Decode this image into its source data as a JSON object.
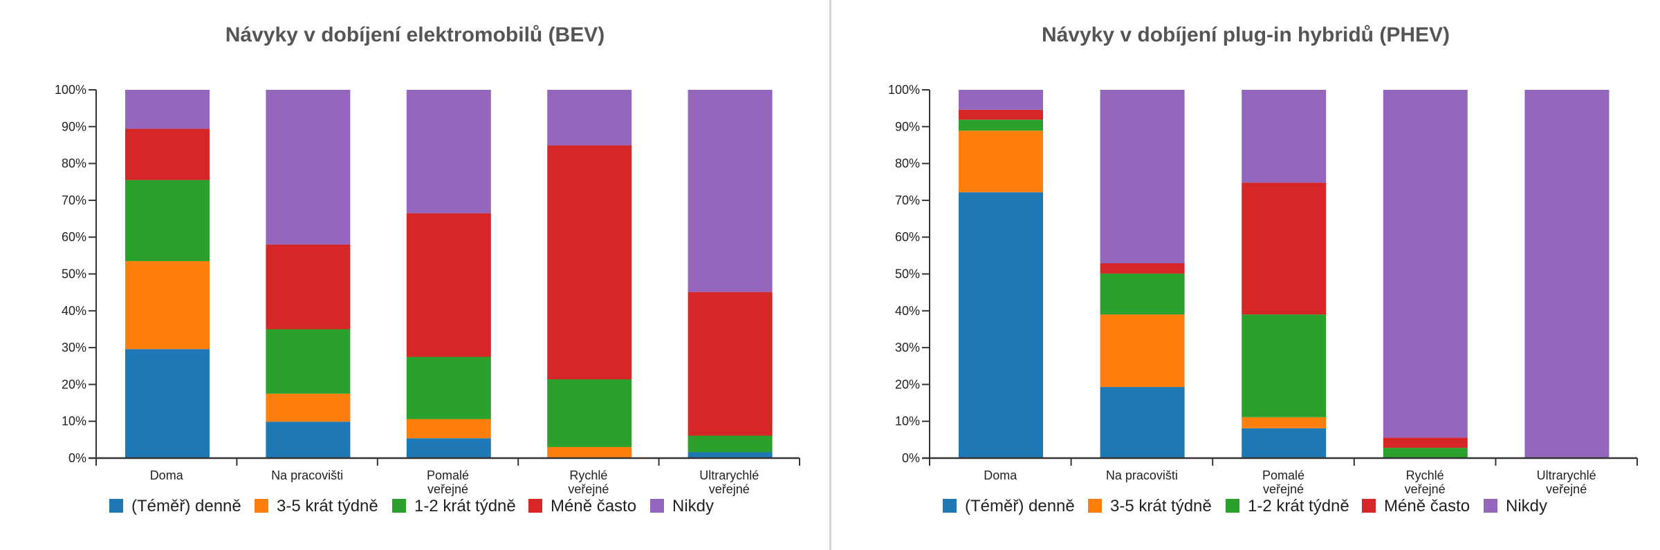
{
  "colors": {
    "daily": "#1f77b4",
    "three_five": "#ff7f0e",
    "one_two": "#2ca02c",
    "less_often": "#d62728",
    "never": "#9467bd",
    "title": "#555555",
    "divider": "#d6d6d6"
  },
  "legend": [
    {
      "label": "(Téměř) denně",
      "color": "#1f77b4"
    },
    {
      "label": "3-5 krát týdně",
      "color": "#ff7f0e"
    },
    {
      "label": "1-2 krát týdně",
      "color": "#2ca02c"
    },
    {
      "label": "Méně často",
      "color": "#d62728"
    },
    {
      "label": "Nikdy",
      "color": "#9467bd"
    }
  ],
  "y_ticks": [
    "0%",
    "10%",
    "20%",
    "30%",
    "40%",
    "50%",
    "60%",
    "70%",
    "80%",
    "90%",
    "100%"
  ],
  "chart_data": [
    {
      "type": "bar",
      "stacked": true,
      "normalized": true,
      "title": "Návyky v dobíjení elektromobilů (BEV)",
      "xlabel": "",
      "ylabel": "",
      "ylim": [
        0,
        100
      ],
      "categories": [
        [
          "Doma"
        ],
        [
          "Na pracovišti"
        ],
        [
          "Pomalé",
          "veřejné"
        ],
        [
          "Rychlé",
          "veřejné"
        ],
        [
          "Ultrarychlé",
          "veřejné"
        ]
      ],
      "category_names": [
        "Doma",
        "Na pracovišti",
        "Pomalé veřejné",
        "Rychlé veřejné",
        "Ultrarychlé veřejné"
      ],
      "legend_position": "bottom",
      "grid": false,
      "series": [
        {
          "name": "(Téměř) denně",
          "color": "#1f77b4",
          "values": [
            29.6,
            9.9,
            5.4,
            0.0,
            1.6
          ]
        },
        {
          "name": "3-5 krát týdně",
          "color": "#ff7f0e",
          "values": [
            23.9,
            7.6,
            5.2,
            3.0,
            0.0
          ]
        },
        {
          "name": "1-2 krát týdně",
          "color": "#2ca02c",
          "values": [
            22.0,
            17.5,
            16.9,
            18.4,
            4.5
          ]
        },
        {
          "name": "Méně často",
          "color": "#d62728",
          "values": [
            13.9,
            23.0,
            39.0,
            63.5,
            39.0
          ]
        },
        {
          "name": "Nikdy",
          "color": "#9467bd",
          "values": [
            10.6,
            42.0,
            33.5,
            15.1,
            54.9
          ]
        }
      ]
    },
    {
      "type": "bar",
      "stacked": true,
      "normalized": true,
      "title": "Návyky v dobíjení plug-in hybridů (PHEV)",
      "xlabel": "",
      "ylabel": "",
      "ylim": [
        0,
        100
      ],
      "categories": [
        [
          "Doma"
        ],
        [
          "Na pracovišti"
        ],
        [
          "Pomalé",
          "veřejné"
        ],
        [
          "Rychlé",
          "veřejné"
        ],
        [
          "Ultrarychlé",
          "veřejné"
        ]
      ],
      "category_names": [
        "Doma",
        "Na pracovišti",
        "Pomalé veřejné",
        "Rychlé veřejné",
        "Ultrarychlé veřejné"
      ],
      "legend_position": "bottom",
      "grid": false,
      "series": [
        {
          "name": "(Téměř) denně",
          "color": "#1f77b4",
          "values": [
            72.2,
            19.3,
            8.1,
            0.0,
            0.0
          ]
        },
        {
          "name": "3-5 krát týdně",
          "color": "#ff7f0e",
          "values": [
            16.7,
            19.7,
            3.0,
            0.0,
            0.0
          ]
        },
        {
          "name": "1-2 krát týdně",
          "color": "#2ca02c",
          "values": [
            3.0,
            11.1,
            27.9,
            2.8,
            0.0
          ]
        },
        {
          "name": "Méně často",
          "color": "#d62728",
          "values": [
            2.7,
            2.8,
            35.8,
            2.8,
            0.0
          ]
        },
        {
          "name": "Nikdy",
          "color": "#9467bd",
          "values": [
            5.4,
            47.1,
            25.2,
            94.4,
            100.0
          ]
        }
      ]
    }
  ]
}
